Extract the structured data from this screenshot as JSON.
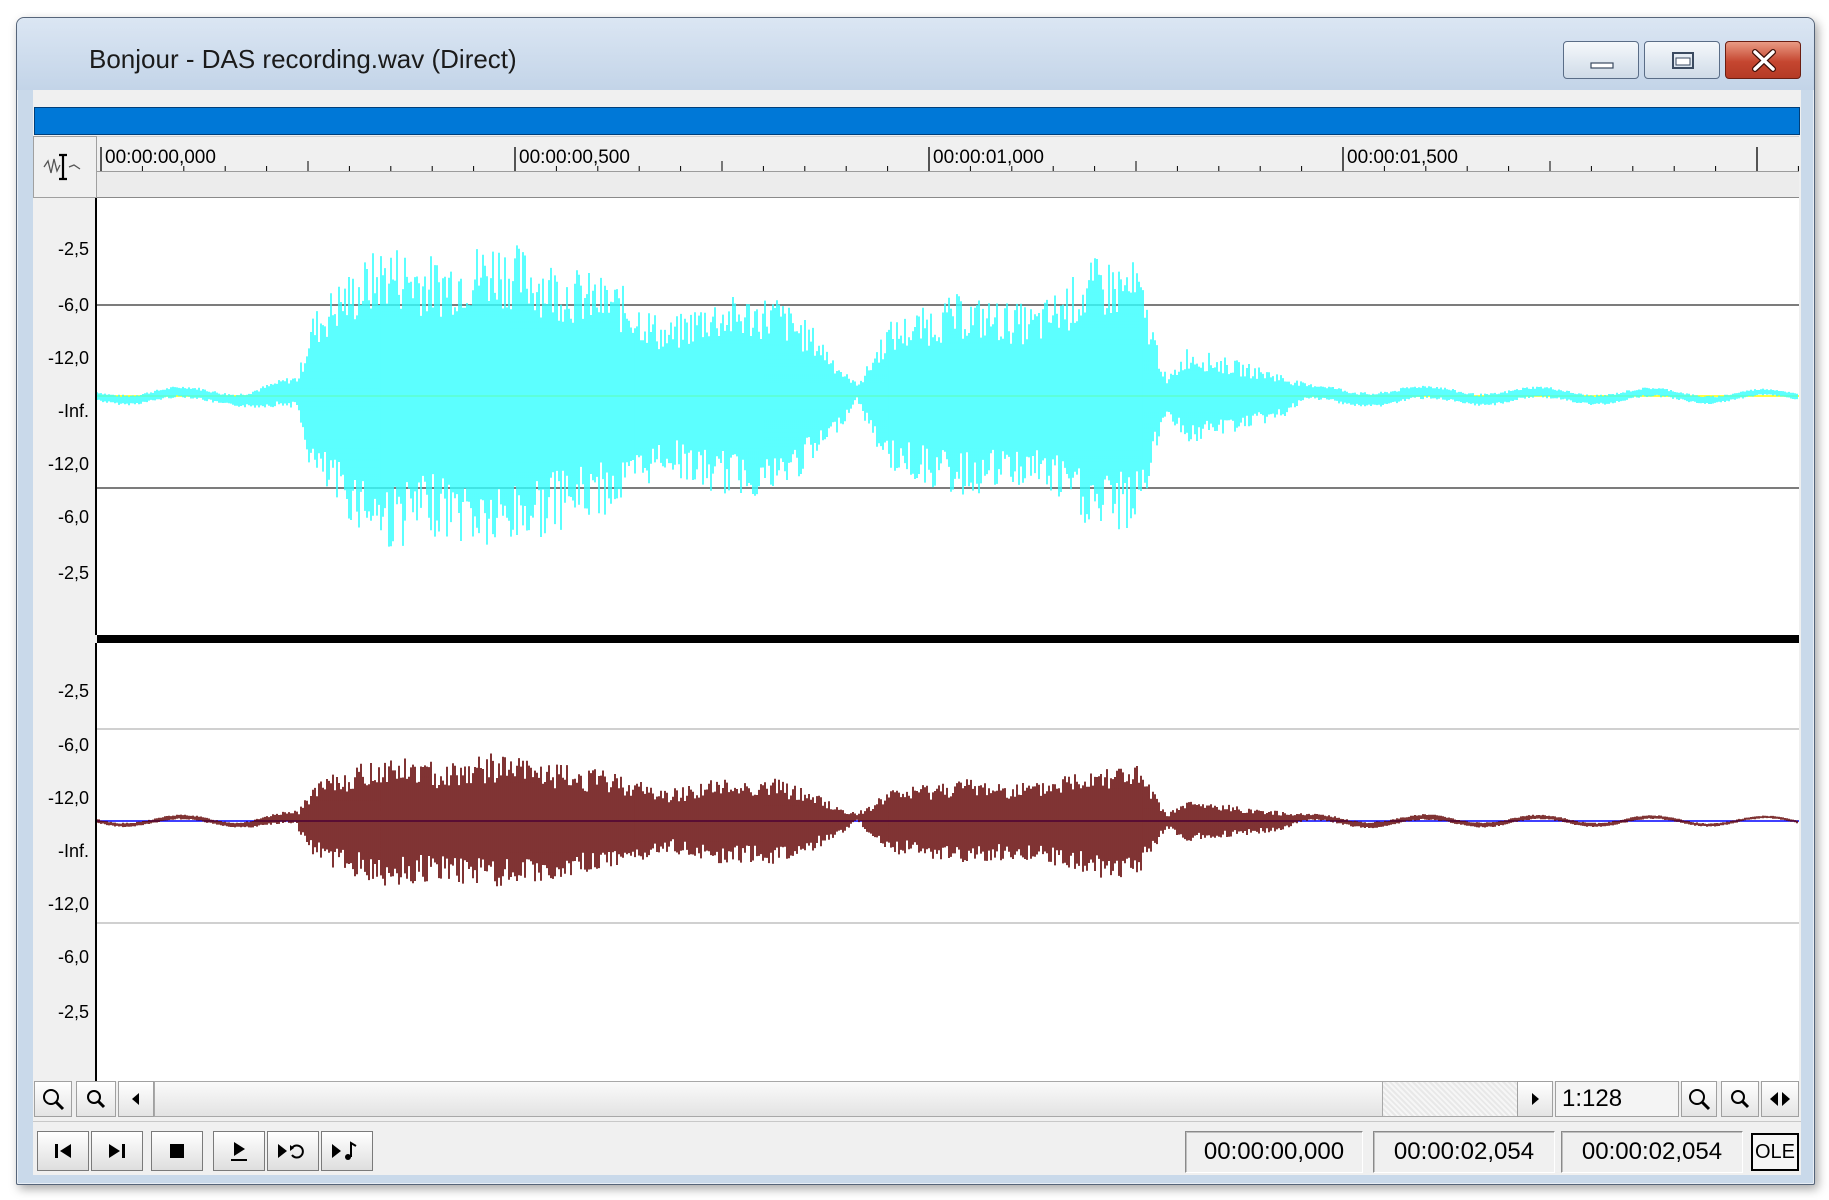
{
  "window": {
    "title": "Bonjour - DAS recording.wav (Direct)",
    "controls": [
      "minimize-icon",
      "restore-icon",
      "close-icon"
    ]
  },
  "ruler": {
    "labels": [
      "00:00:00,000",
      "00:00:00,500",
      "00:00:01,000",
      "00:00:01,500"
    ]
  },
  "channels": [
    {
      "name": "channel-1",
      "db_labels": [
        "-2,5",
        "-6,0",
        "-12,0",
        "-Inf.",
        "-12,0",
        "-6,0",
        "-2,5"
      ],
      "wave_color": "#33ffff",
      "center_line_color": "#ffff00",
      "grid_color": "#505050"
    },
    {
      "name": "channel-2",
      "db_labels": [
        "-2,5",
        "-6,0",
        "-12,0",
        "-Inf.",
        "-12,0",
        "-6,0",
        "-2,5"
      ],
      "wave_color": "#600000",
      "center_line_color": "#0000ff",
      "grid_color": "#c0c0c0"
    }
  ],
  "scroll": {
    "zoom_ratio": "1:128",
    "icons": [
      "zoom-in-icon",
      "zoom-out-icon",
      "scroll-left-icon",
      "scroll-right-icon",
      "zoom-in-icon",
      "zoom-out-icon",
      "horizontal-zoom-icon"
    ]
  },
  "transport": {
    "buttons": [
      "go-to-start-icon",
      "go-to-end-icon",
      "stop-icon",
      "play-icon",
      "loop-play-icon",
      "play-midi-icon"
    ],
    "selection_start": "00:00:00,000",
    "selection_end": "00:00:02,054",
    "selection_length": "00:00:02,054",
    "ole_label": "OLE"
  }
}
